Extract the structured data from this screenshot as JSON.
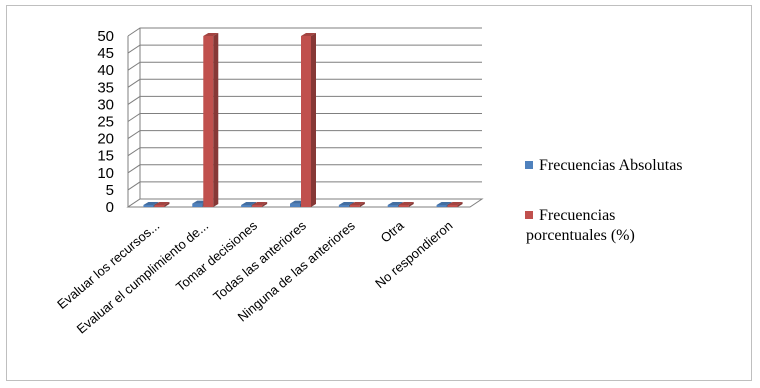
{
  "chart_data": {
    "type": "bar",
    "title": "",
    "xlabel": "",
    "ylabel": "",
    "categories": [
      "Evaluar los recursos...",
      "Evaluar el cumplimiento de...",
      "Tomar decisiones",
      "Todas las anteriores",
      "Ninguna de las anteriores",
      "Otra",
      "No respondieron"
    ],
    "series": [
      {
        "name": "Frecuencias Absolutas",
        "color": "#4f81bd",
        "values": [
          0,
          1,
          0,
          1,
          0,
          0,
          0
        ]
      },
      {
        "name": "Frecuencias porcentuales (%)",
        "color": "#c0504d",
        "values": [
          0,
          50,
          0,
          50,
          0,
          0,
          0
        ]
      }
    ],
    "ylim": [
      0,
      50
    ],
    "yticks": [
      0,
      5,
      10,
      15,
      20,
      25,
      30,
      35,
      40,
      45,
      50
    ],
    "grid": true,
    "legend_position": "right"
  }
}
